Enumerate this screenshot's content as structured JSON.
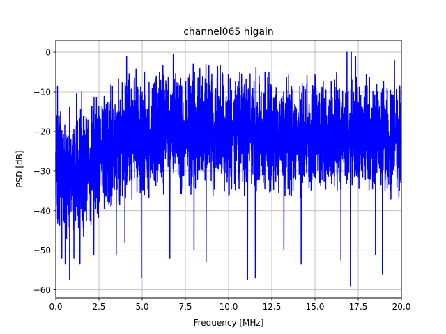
{
  "chart_data": {
    "type": "line",
    "title": "channel065 higain",
    "xlabel": "Frequency [MHz]",
    "ylabel": "PSD [dB]",
    "xlim": [
      0,
      20
    ],
    "ylim": [
      -62,
      3
    ],
    "grid": true,
    "line_color": "#0000ff",
    "x_ticks": [
      0,
      2.5,
      5,
      7.5,
      10,
      12.5,
      15,
      17.5,
      20
    ],
    "x_tick_labels": [
      "0.0",
      "2.5",
      "5.0",
      "7.5",
      "10.0",
      "12.5",
      "15.0",
      "17.5",
      "20.0"
    ],
    "y_ticks": [
      0,
      -10,
      -20,
      -30,
      -40,
      -50,
      -60
    ],
    "y_tick_labels": [
      "0",
      "−10",
      "−20",
      "−30",
      "−40",
      "−50",
      "−60"
    ],
    "series": [
      {
        "envelope_x": [
          0.0,
          0.5,
          1.0,
          1.5,
          2.0,
          2.5,
          3.0,
          3.5,
          4.0,
          4.5,
          5.0,
          5.5,
          6.0,
          6.5,
          7.0,
          7.5,
          8.0,
          8.5,
          9.0,
          9.5,
          10.0,
          10.5,
          11.0,
          11.5,
          12.0,
          12.5,
          13.0,
          13.5,
          14.0,
          14.5,
          15.0,
          15.5,
          16.0,
          16.5,
          17.0,
          17.5,
          18.0,
          18.5,
          19.0,
          19.5,
          20.0
        ],
        "envelope_max": [
          -12,
          -13,
          -14,
          -13,
          -11,
          -9,
          -8,
          -7,
          -5,
          -4,
          -4,
          -3.5,
          -3,
          -3,
          -3,
          -3,
          -3,
          -3,
          -3,
          -3,
          -3,
          -3,
          -3,
          -3.5,
          -3.5,
          -4,
          -4,
          -4,
          -4.5,
          -4.5,
          -4.5,
          -4.5,
          -5,
          -5,
          -5,
          -5,
          -5,
          -5.5,
          -6,
          -6.5,
          -7
        ],
        "envelope_min": [
          -45,
          -47,
          -48,
          -47,
          -45,
          -43,
          -42,
          -40,
          -39,
          -38,
          -38,
          -37,
          -37,
          -37,
          -37,
          -37,
          -37,
          -37,
          -37,
          -37,
          -37,
          -37,
          -37,
          -37,
          -37,
          -37,
          -37,
          -37,
          -37,
          -37,
          -37,
          -37,
          -37,
          -37,
          -37,
          -37,
          -37,
          -37,
          -37,
          -38,
          -39
        ],
        "peaks": [
          [
            0.1,
            -8.5
          ],
          [
            1.2,
            -10.5
          ],
          [
            1.5,
            -10
          ],
          [
            4.1,
            -1
          ],
          [
            6.8,
            -0.5
          ],
          [
            16.85,
            0
          ],
          [
            17.1,
            0
          ],
          [
            17.35,
            -1
          ],
          [
            19.6,
            -2
          ]
        ],
        "dips": [
          [
            0.35,
            -52
          ],
          [
            0.55,
            -53.5
          ],
          [
            0.8,
            -57.5
          ],
          [
            1.05,
            -52
          ],
          [
            1.4,
            -53.5
          ],
          [
            2.2,
            -51
          ],
          [
            3.5,
            -51
          ],
          [
            4.0,
            -48
          ],
          [
            4.95,
            -57
          ],
          [
            6.6,
            -52
          ],
          [
            8.0,
            -50
          ],
          [
            8.7,
            -53
          ],
          [
            11.1,
            -57.5
          ],
          [
            11.55,
            -57
          ],
          [
            13.2,
            -50
          ],
          [
            14.2,
            -53.5
          ],
          [
            16.5,
            -52.5
          ],
          [
            17.05,
            -59
          ],
          [
            18.5,
            -51
          ],
          [
            18.9,
            -56
          ]
        ]
      }
    ]
  }
}
